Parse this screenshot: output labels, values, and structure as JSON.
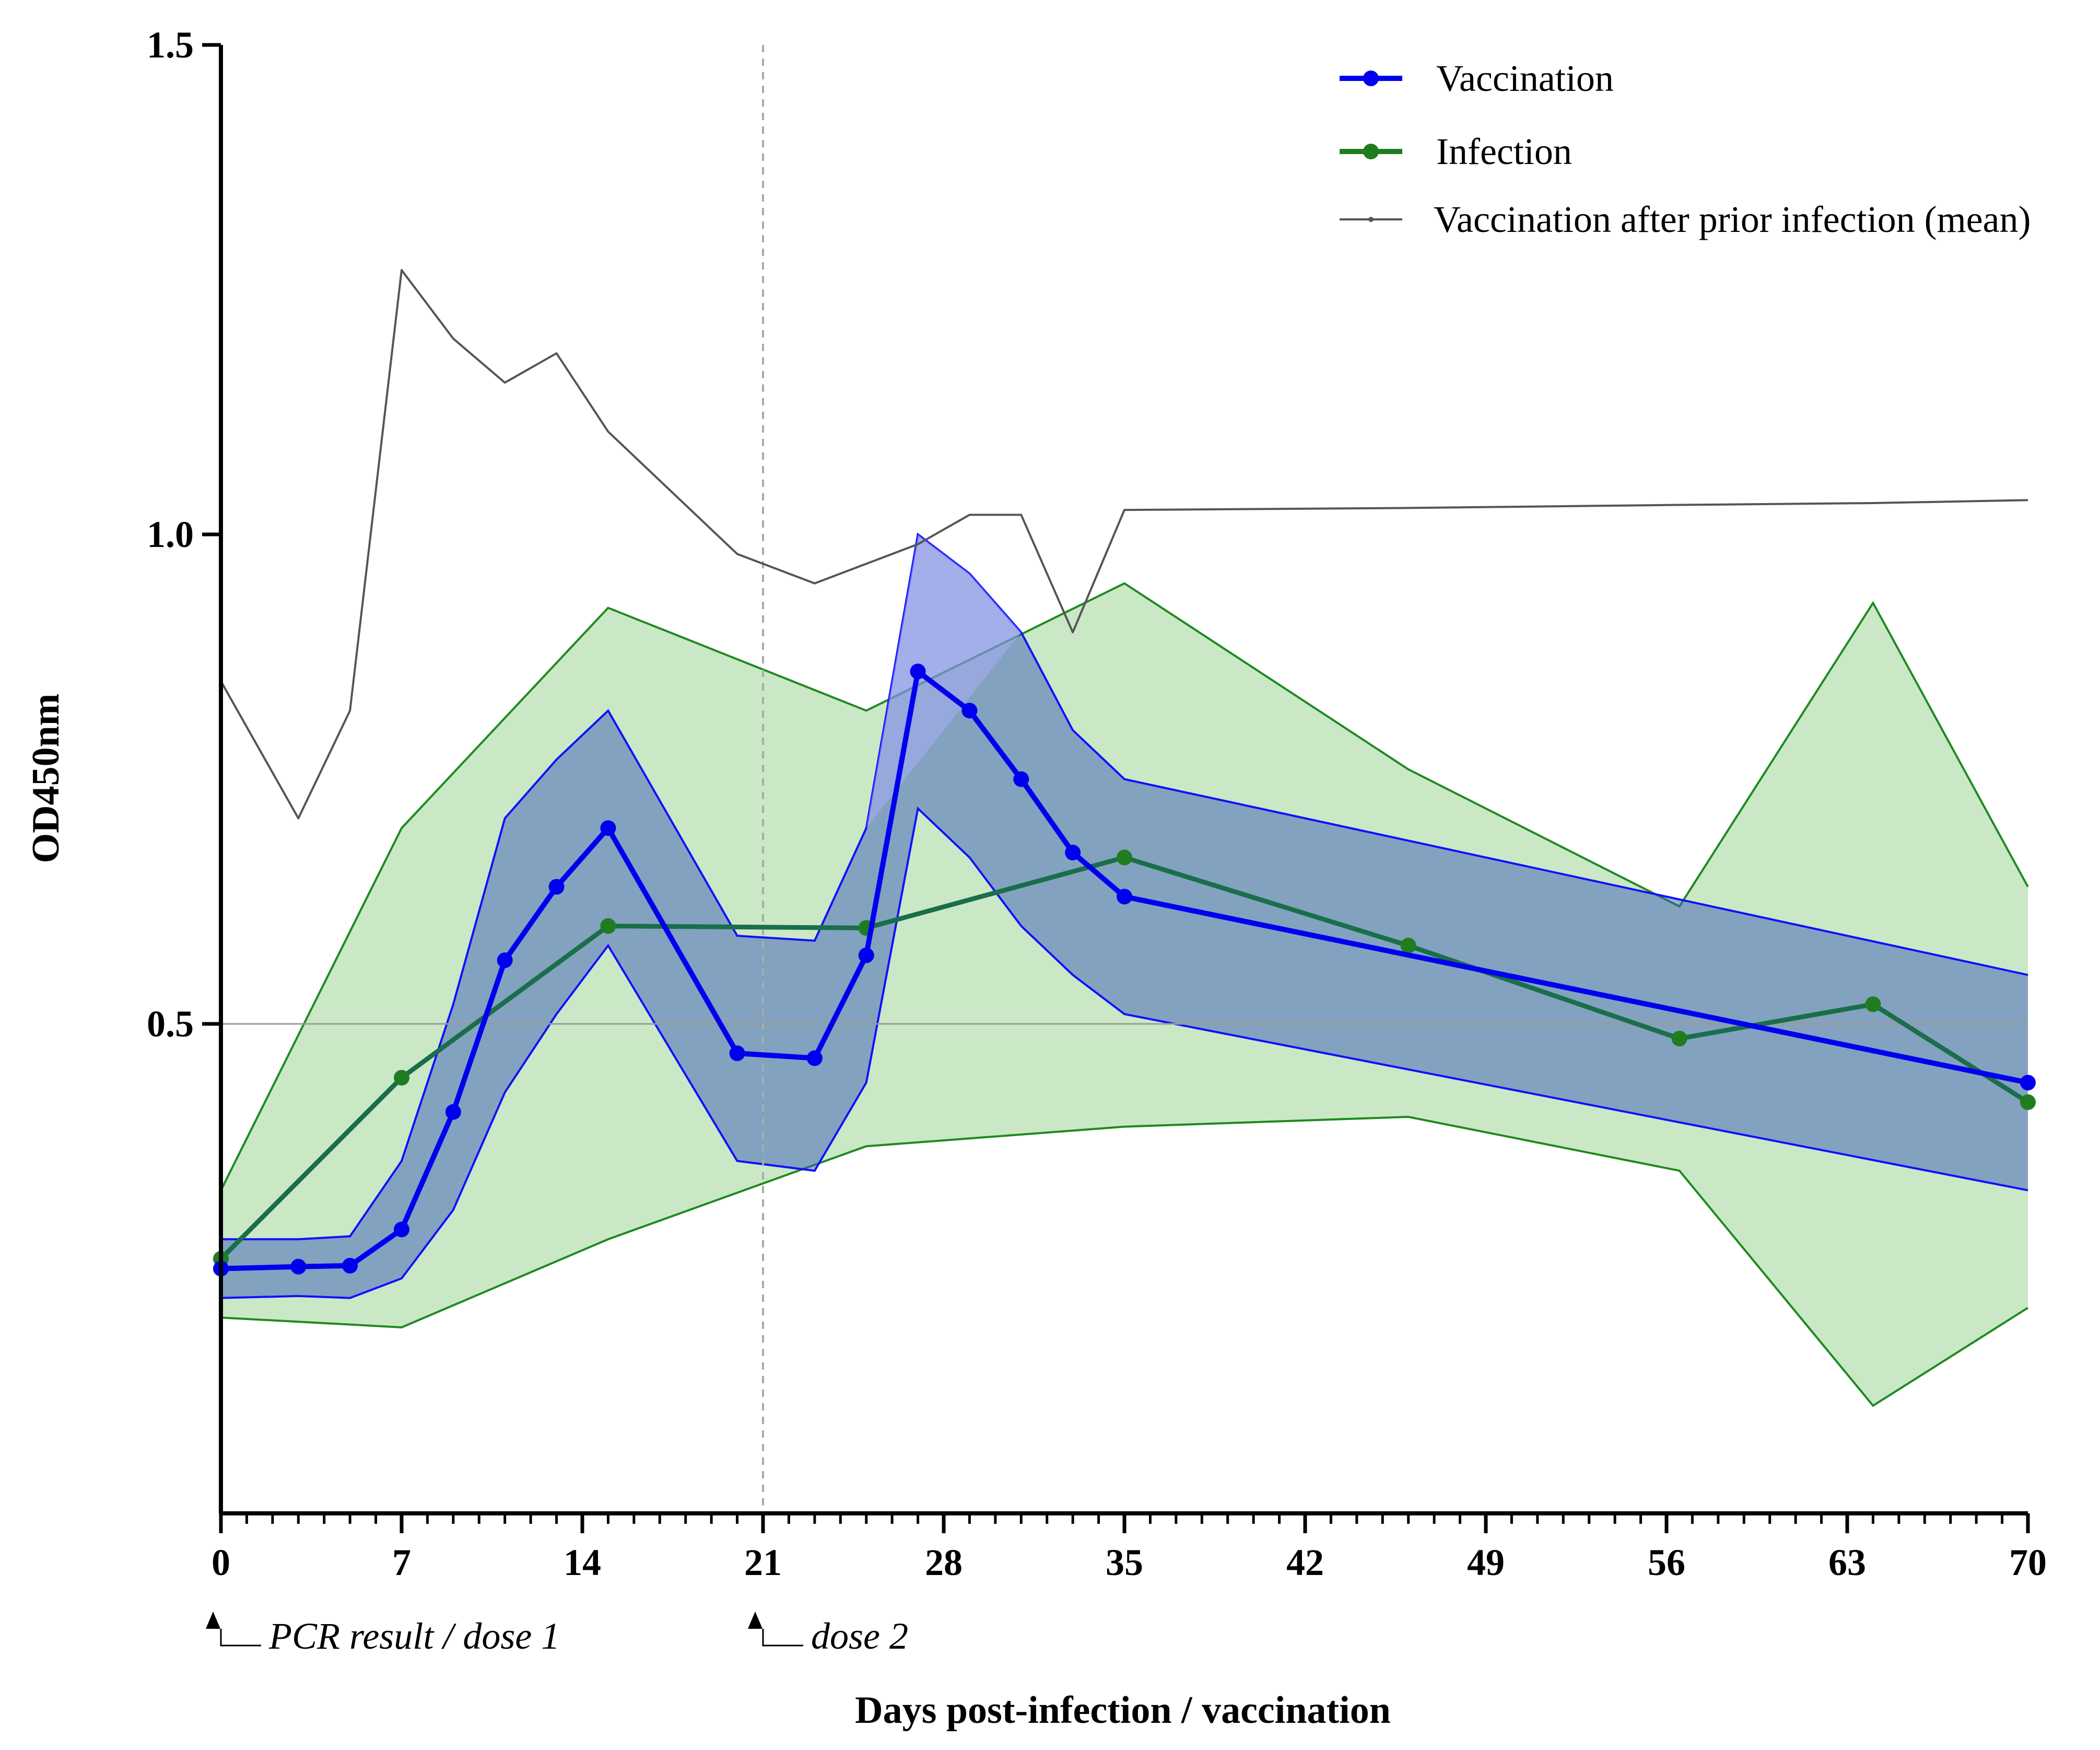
{
  "chart_data": {
    "type": "line",
    "title": "",
    "xlabel": "Days post-infection / vaccination",
    "ylabel": "OD450nm",
    "xlim": [
      0,
      70
    ],
    "ylim": [
      0,
      1.5
    ],
    "x_ticks": [
      0,
      7,
      14,
      21,
      28,
      35,
      42,
      49,
      56,
      63,
      70
    ],
    "x_minor_step": 1,
    "y_ticks": [
      0.5,
      1.0,
      1.5
    ],
    "y_tick_labels": [
      "0.5",
      "1.0",
      "1.5"
    ],
    "reference_line_y": 0.5,
    "dashed_vline_x": 21,
    "grid": false,
    "legend_position": "top-right",
    "annotations": [
      {
        "x": 0,
        "text": "PCR result / dose 1"
      },
      {
        "x": 21,
        "text": "dose 2"
      }
    ],
    "series": [
      {
        "name": "Vaccination",
        "color": "#0000ee",
        "band_color": "#3a5cb8",
        "marker": "circle",
        "x": [
          0,
          3,
          5,
          7,
          9,
          11,
          13,
          15,
          20,
          23,
          25,
          27,
          29,
          31,
          33,
          35,
          70
        ],
        "y": [
          0.25,
          0.252,
          0.253,
          0.29,
          0.41,
          0.565,
          0.64,
          0.7,
          0.47,
          0.465,
          0.57,
          0.86,
          0.82,
          0.75,
          0.675,
          0.63,
          0.44
        ],
        "lower": [
          0.22,
          0.222,
          0.22,
          0.24,
          0.31,
          0.43,
          0.51,
          0.58,
          0.36,
          0.35,
          0.44,
          0.72,
          0.67,
          0.6,
          0.55,
          0.51,
          0.33
        ],
        "upper": [
          0.28,
          0.28,
          0.283,
          0.36,
          0.52,
          0.71,
          0.77,
          0.82,
          0.59,
          0.585,
          0.7,
          1.0,
          0.96,
          0.9,
          0.8,
          0.75,
          0.55
        ]
      },
      {
        "name": "Infection",
        "color": "#1f7d1f",
        "band_color": "#cae8c6",
        "marker": "circle",
        "x": [
          0,
          7,
          15,
          25,
          35,
          46,
          56.5,
          64,
          70
        ],
        "y": [
          0.26,
          0.445,
          0.6,
          0.598,
          0.67,
          0.58,
          0.485,
          0.52,
          0.42
        ],
        "lower": [
          0.2,
          0.19,
          0.28,
          0.375,
          0.395,
          0.405,
          0.35,
          0.11,
          0.21
        ],
        "upper": [
          0.33,
          0.7,
          0.925,
          0.82,
          0.95,
          0.76,
          0.62,
          0.93,
          0.64
        ]
      },
      {
        "name": "Vaccination after prior infection (mean)",
        "color": "#555555",
        "marker": "dot",
        "x": [
          0,
          3,
          5,
          7,
          9,
          11,
          13,
          15,
          20,
          23,
          25,
          27,
          29,
          31,
          33,
          35,
          46,
          56,
          64,
          70
        ],
        "y": [
          0.85,
          0.71,
          0.82,
          1.27,
          1.2,
          1.155,
          1.185,
          1.105,
          0.98,
          0.95,
          0.97,
          0.99,
          1.02,
          1.02,
          0.9,
          1.025,
          1.027,
          1.03,
          1.032,
          1.035
        ]
      }
    ]
  }
}
